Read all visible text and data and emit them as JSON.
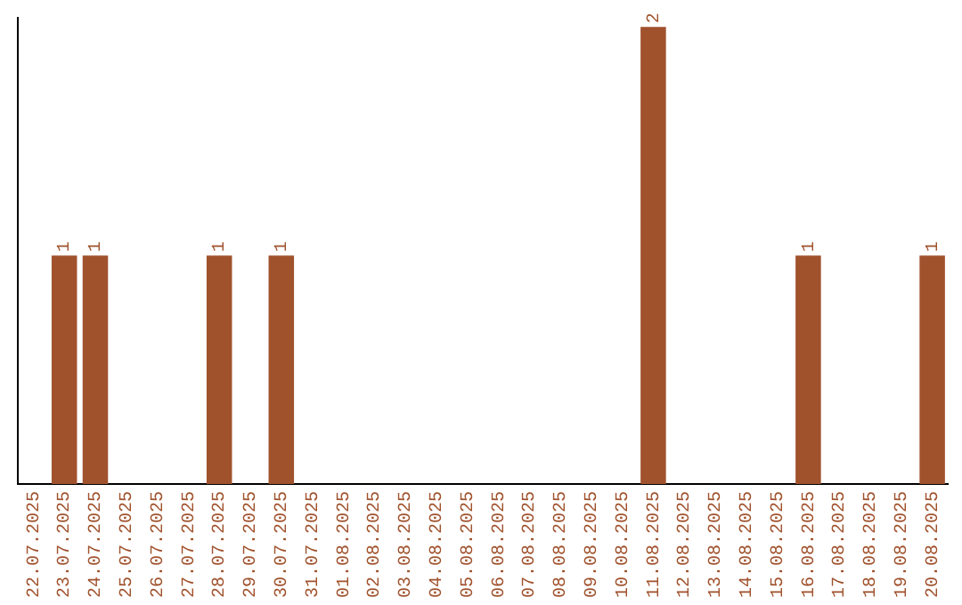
{
  "chart_data": {
    "type": "bar",
    "categories": [
      "22.07.2025",
      "23.07.2025",
      "24.07.2025",
      "25.07.2025",
      "26.07.2025",
      "27.07.2025",
      "28.07.2025",
      "29.07.2025",
      "30.07.2025",
      "31.07.2025",
      "01.08.2025",
      "02.08.2025",
      "03.08.2025",
      "04.08.2025",
      "05.08.2025",
      "06.08.2025",
      "07.08.2025",
      "08.08.2025",
      "09.08.2025",
      "10.08.2025",
      "11.08.2025",
      "12.08.2025",
      "13.08.2025",
      "14.08.2025",
      "15.08.2025",
      "16.08.2025",
      "17.08.2025",
      "18.08.2025",
      "19.08.2025",
      "20.08.2025"
    ],
    "values": [
      0,
      1,
      1,
      0,
      0,
      0,
      1,
      0,
      1,
      0,
      0,
      0,
      0,
      0,
      0,
      0,
      0,
      0,
      0,
      0,
      2,
      0,
      0,
      0,
      0,
      1,
      0,
      0,
      0,
      1
    ],
    "value_labels": [
      null,
      "1",
      "1",
      null,
      null,
      null,
      "1",
      null,
      "1",
      null,
      null,
      null,
      null,
      null,
      null,
      null,
      null,
      null,
      null,
      null,
      "2",
      null,
      null,
      null,
      null,
      "1",
      null,
      null,
      null,
      "1"
    ],
    "color": "#a0522d",
    "ylim": [
      0,
      2.04
    ],
    "tick_labels": "x",
    "grid": false,
    "legend": false
  }
}
